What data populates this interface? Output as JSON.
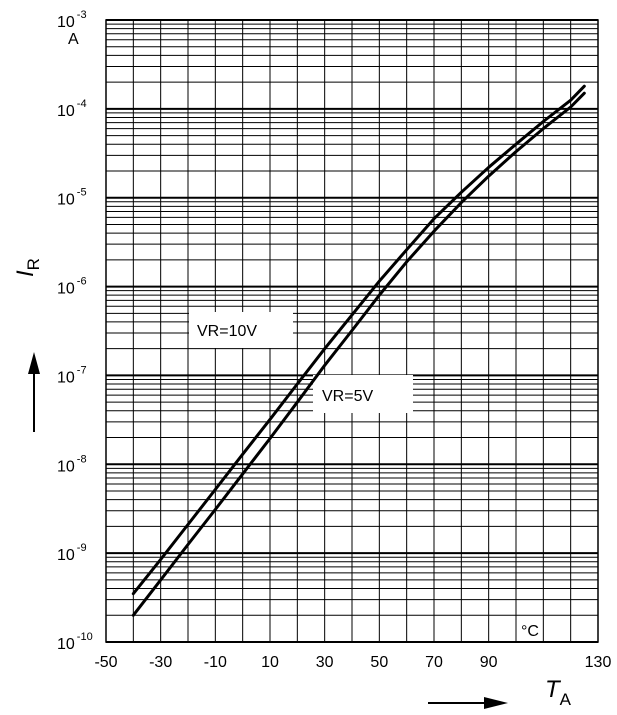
{
  "chart_data": {
    "type": "line",
    "title": "",
    "xlabel": "T",
    "xlabel_sub": "A",
    "ylabel": "I",
    "ylabel_sub": "R",
    "x_unit": "°C",
    "y_unit": "A",
    "xlim": [
      -50,
      130
    ],
    "ylim": [
      1e-10,
      0.001
    ],
    "y_scale": "log",
    "grid": true,
    "x_ticks": [
      {
        "value": -50,
        "label": "-50"
      },
      {
        "value": -30,
        "label": "-30"
      },
      {
        "value": -10,
        "label": "-10"
      },
      {
        "value": 10,
        "label": "10"
      },
      {
        "value": 30,
        "label": "30"
      },
      {
        "value": 50,
        "label": "50"
      },
      {
        "value": 70,
        "label": "70"
      },
      {
        "value": 90,
        "label": "90"
      },
      {
        "value": 130,
        "label": "130"
      }
    ],
    "y_ticks": [
      {
        "value": 1e-10,
        "base": "10",
        "exp": "-10"
      },
      {
        "value": 1e-09,
        "base": "10",
        "exp": "-9"
      },
      {
        "value": 1e-08,
        "base": "10",
        "exp": "-8"
      },
      {
        "value": 1e-07,
        "base": "10",
        "exp": "-7"
      },
      {
        "value": 1e-06,
        "base": "10",
        "exp": "-6"
      },
      {
        "value": 1e-05,
        "base": "10",
        "exp": "-5"
      },
      {
        "value": 0.0001,
        "base": "10",
        "exp": "-4"
      },
      {
        "value": 0.001,
        "base": "10",
        "exp": "-3"
      }
    ],
    "series": [
      {
        "name": "VR=10V",
        "x": [
          -40,
          -30,
          -20,
          -10,
          0,
          10,
          20,
          30,
          40,
          50,
          60,
          70,
          80,
          90,
          100,
          110,
          120,
          125
        ],
        "y": [
          3.5e-10,
          8.5e-10,
          2.1e-09,
          5.2e-09,
          1.3e-08,
          3.2e-08,
          8e-08,
          2e-07,
          4.8e-07,
          1.15e-06,
          2.6e-06,
          5.8e-06,
          1.15e-05,
          2.2e-05,
          4e-05,
          7.2e-05,
          0.000125,
          0.00018
        ]
      },
      {
        "name": "VR=5V",
        "x": [
          -40,
          -30,
          -20,
          -10,
          0,
          10,
          20,
          30,
          40,
          50,
          60,
          70,
          80,
          90,
          100,
          110,
          120,
          125
        ],
        "y": [
          2e-10,
          5e-10,
          1.25e-09,
          3.1e-09,
          7.8e-09,
          1.95e-08,
          5e-08,
          1.3e-07,
          3.2e-07,
          8e-07,
          1.9e-06,
          4.2e-06,
          8.8e-06,
          1.75e-05,
          3.3e-05,
          6e-05,
          0.000105,
          0.00015
        ]
      }
    ]
  }
}
